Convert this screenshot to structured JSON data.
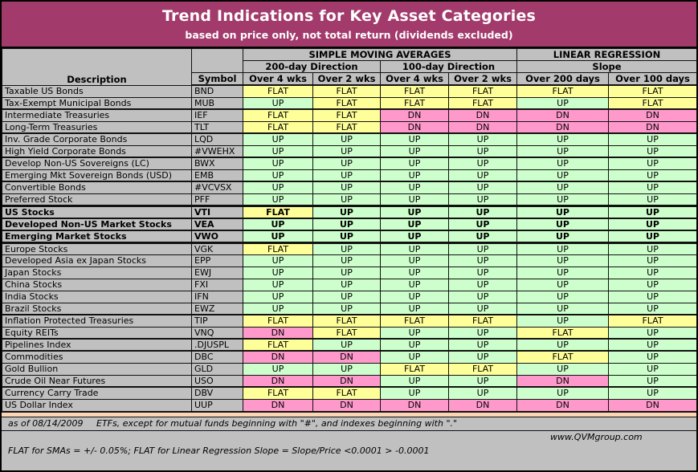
{
  "banner": {
    "title": "Trend Indications for Key Asset Categories",
    "subtitle": "based on price only, not total return (dividends excluded)"
  },
  "table": {
    "group_headers": {
      "sma": "SIMPLE MOVING AVERAGES",
      "lr": "LINEAR REGRESSION"
    },
    "sub_headers": {
      "sma200": "200-day Direction",
      "sma100": "100-day Direction",
      "slope": "Slope"
    },
    "columns": {
      "description": "Description",
      "symbol": "Symbol",
      "c1": "Over 4 wks",
      "c2": "Over 2 wks",
      "c3": "Over 4 wks",
      "c4": "Over 2 wks",
      "c5": "Over 200 days",
      "c6": "Over 100 days"
    },
    "rows": [
      {
        "description": "Taxable US Bonds",
        "symbol": "BND",
        "values": [
          "FLAT",
          "FLAT",
          "FLAT",
          "FLAT",
          "FLAT",
          "FLAT"
        ],
        "bold": false,
        "sep": 1
      },
      {
        "description": "Tax-Exempt Municipal Bonds",
        "symbol": "MUB",
        "values": [
          "UP",
          "FLAT",
          "FLAT",
          "FLAT",
          "UP",
          "FLAT"
        ],
        "bold": false,
        "sep": 2
      },
      {
        "description": "Intermediate Treasuries",
        "symbol": "IEF",
        "values": [
          "FLAT",
          "FLAT",
          "DN",
          "DN",
          "DN",
          "DN"
        ],
        "bold": false,
        "sep": 1
      },
      {
        "description": "Long-Term Treasuries",
        "symbol": "TLT",
        "values": [
          "FLAT",
          "FLAT",
          "DN",
          "DN",
          "DN",
          "DN"
        ],
        "bold": false,
        "sep": 2
      },
      {
        "description": "Inv. Grade Corporate Bonds",
        "symbol": "LQD",
        "values": [
          "UP",
          "UP",
          "UP",
          "UP",
          "UP",
          "UP"
        ],
        "bold": false,
        "sep": 1
      },
      {
        "description": "High Yield Corporate Bonds",
        "symbol": "#VWEHX",
        "values": [
          "UP",
          "UP",
          "UP",
          "UP",
          "UP",
          "UP"
        ],
        "bold": false,
        "sep": 2
      },
      {
        "description": "Develop Non-US Sovereigns (LC)",
        "symbol": "BWX",
        "values": [
          "UP",
          "UP",
          "UP",
          "UP",
          "UP",
          "UP"
        ],
        "bold": false,
        "sep": 1
      },
      {
        "description": "Emerging Mkt Sovereign Bonds (USD)",
        "symbol": "EMB",
        "values": [
          "UP",
          "UP",
          "UP",
          "UP",
          "UP",
          "UP"
        ],
        "bold": false,
        "sep": 2
      },
      {
        "description": "Convertible Bonds",
        "symbol": "#VCVSX",
        "values": [
          "UP",
          "UP",
          "UP",
          "UP",
          "UP",
          "UP"
        ],
        "bold": false,
        "sep": 1
      },
      {
        "description": "Preferred Stock",
        "symbol": "PFF",
        "values": [
          "UP",
          "UP",
          "UP",
          "UP",
          "UP",
          "UP"
        ],
        "bold": false,
        "sep": 3
      },
      {
        "description": "US Stocks",
        "symbol": "VTI",
        "values": [
          "FLAT",
          "UP",
          "UP",
          "UP",
          "UP",
          "UP"
        ],
        "bold": true,
        "sep": 2
      },
      {
        "description": "Developed Non-US Market Stocks",
        "symbol": "VEA",
        "values": [
          "UP",
          "UP",
          "UP",
          "UP",
          "UP",
          "UP"
        ],
        "bold": true,
        "sep": 2
      },
      {
        "description": "Emerging Market Stocks",
        "symbol": "VWO",
        "values": [
          "UP",
          "UP",
          "UP",
          "UP",
          "UP",
          "UP"
        ],
        "bold": true,
        "sep": 3
      },
      {
        "description": "Europe Stocks",
        "symbol": "VGK",
        "values": [
          "FLAT",
          "UP",
          "UP",
          "UP",
          "UP",
          "UP"
        ],
        "bold": false,
        "sep": 1
      },
      {
        "description": "Developed Asia ex Japan Stocks",
        "symbol": "EPP",
        "values": [
          "UP",
          "UP",
          "UP",
          "UP",
          "UP",
          "UP"
        ],
        "bold": false,
        "sep": 1
      },
      {
        "description": "Japan Stocks",
        "symbol": "EWJ",
        "values": [
          "UP",
          "UP",
          "UP",
          "UP",
          "UP",
          "UP"
        ],
        "bold": false,
        "sep": 1
      },
      {
        "description": "China Stocks",
        "symbol": "FXI",
        "values": [
          "UP",
          "UP",
          "UP",
          "UP",
          "UP",
          "UP"
        ],
        "bold": false,
        "sep": 1
      },
      {
        "description": "India Stocks",
        "symbol": "IFN",
        "values": [
          "UP",
          "UP",
          "UP",
          "UP",
          "UP",
          "UP"
        ],
        "bold": false,
        "sep": 1
      },
      {
        "description": "Brazil Stocks",
        "symbol": "EWZ",
        "values": [
          "UP",
          "UP",
          "UP",
          "UP",
          "UP",
          "UP"
        ],
        "bold": false,
        "sep": 2
      },
      {
        "description": "Inflation Protected Treasuries",
        "symbol": "TIP",
        "values": [
          "FLAT",
          "FLAT",
          "FLAT",
          "FLAT",
          "UP",
          "FLAT"
        ],
        "bold": false,
        "sep": 1
      },
      {
        "description": "Equity REITs",
        "symbol": "VNQ",
        "values": [
          "DN",
          "FLAT",
          "UP",
          "UP",
          "FLAT",
          "UP"
        ],
        "bold": false,
        "sep": 2
      },
      {
        "description": "Pipelines Index",
        "symbol": ".DJUSPL",
        "values": [
          "FLAT",
          "UP",
          "UP",
          "UP",
          "UP",
          "UP"
        ],
        "bold": false,
        "sep": 2
      },
      {
        "description": "Commodities",
        "symbol": "DBC",
        "values": [
          "DN",
          "DN",
          "UP",
          "UP",
          "FLAT",
          "UP"
        ],
        "bold": false,
        "sep": 1
      },
      {
        "description": "Gold Bullion",
        "symbol": "GLD",
        "values": [
          "UP",
          "UP",
          "FLAT",
          "FLAT",
          "UP",
          "UP"
        ],
        "bold": false,
        "sep": 1
      },
      {
        "description": "Crude Oil Near Futures",
        "symbol": "USO",
        "values": [
          "DN",
          "DN",
          "UP",
          "UP",
          "DN",
          "UP"
        ],
        "bold": false,
        "sep": 2
      },
      {
        "description": "Currency Carry Trade",
        "symbol": "DBV",
        "values": [
          "FLAT",
          "FLAT",
          "UP",
          "UP",
          "UP",
          "UP"
        ],
        "bold": false,
        "sep": 1
      },
      {
        "description": "US Dollar Index",
        "symbol": "UUP",
        "values": [
          "DN",
          "DN",
          "DN",
          "DN",
          "DN",
          "DN"
        ],
        "bold": false,
        "sep": 1
      }
    ]
  },
  "footer": {
    "as_of": "as of 08/14/2009",
    "symbols_note": "ETFs, except for mutual funds beginning with \"#\", and indexes beginning with \".\"",
    "flat_definition": "FLAT for SMAs = +/- 0.05%; FLAT for Linear Regression Slope = Slope/Price <0.0001 > -0.0001",
    "website": "www.QVMgroup.com"
  },
  "colors": {
    "banner_bg": "#A23A6B",
    "banner_text": "#FFFFFF",
    "cell_gray": "#C0C0C0",
    "flat": "#FFFF99",
    "up": "#CCFFCC",
    "dn": "#FF99CC",
    "separator_peach": "#FBD5B4",
    "border": "#111111"
  }
}
